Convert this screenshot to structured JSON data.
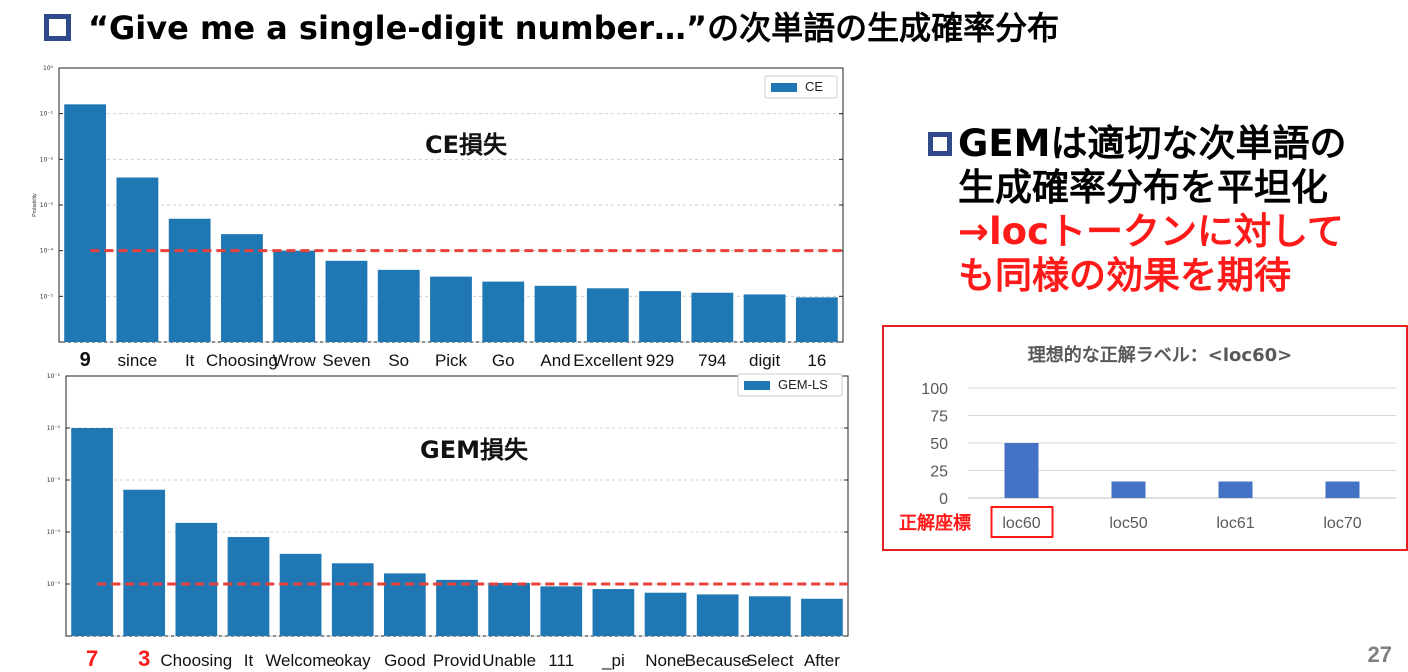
{
  "title": "“Give me a single-digit number…”の次単語の生成確率分布",
  "bullet": {
    "line1": "GEMは適切な次単語の",
    "line2": "生成確率分布を平坦化",
    "line3": "→locトークンに対して",
    "line4": "も同様の効果を期待"
  },
  "page_number": "27",
  "colors": {
    "bar": "#1f77b4",
    "ref_line": "#e8403a",
    "ideal_bar": "#4472c4",
    "accent_red": "#ff1a1a",
    "square": "#2f4a8a"
  },
  "chart_data": [
    {
      "type": "bar",
      "annotation": "CE損失",
      "legend": "CE",
      "legend_position": "top-right",
      "yscale": "log",
      "ylim": [
        1e-06,
        1
      ],
      "grid": true,
      "ytick_labels": [
        "10⁰",
        "10⁻¹",
        "10⁻²",
        "10⁻³",
        "10⁻⁴",
        "10⁻⁵"
      ],
      "ylabel": "Probability",
      "reference_line": 0.0001,
      "categories": [
        "9",
        "since",
        "It",
        "Choosing",
        "Wrow",
        "Seven",
        "So",
        "Pick",
        "Go",
        "And",
        "Excellent",
        "929",
        "794",
        "digit",
        "16"
      ],
      "values": [
        0.16,
        0.004,
        0.0005,
        0.00023,
        0.0001,
        6e-05,
        3.8e-05,
        2.7e-05,
        2.1e-05,
        1.7e-05,
        1.5e-05,
        1.3e-05,
        1.2e-05,
        1.1e-05,
        9.5e-06
      ]
    },
    {
      "type": "bar",
      "annotation": "GEM損失",
      "legend": "GEM-LS",
      "legend_position": "top-right",
      "yscale": "log",
      "ylim": [
        1e-05,
        1
      ],
      "grid": true,
      "ytick_labels": [
        "10⁻¹",
        "10⁻²",
        "10⁻³",
        "10⁻⁴",
        "10⁻⁵"
      ],
      "reference_line": 0.0001,
      "categories": [
        "7",
        "3",
        "Choosing",
        "It",
        "Welcome",
        "okay",
        "Good",
        "Provid",
        "Unable",
        "111",
        "_pi",
        "None",
        "Because",
        "Select",
        "After"
      ],
      "values": [
        0.1,
        0.0065,
        0.0015,
        0.0008,
        0.00038,
        0.00025,
        0.00016,
        0.00012,
        0.000105,
        9e-05,
        8e-05,
        6.8e-05,
        6.3e-05,
        5.8e-05,
        5.2e-05
      ]
    },
    {
      "type": "bar",
      "title": "理想的な正解ラベル：<loc60>",
      "side_label": "正解座標",
      "ylim": [
        0,
        100
      ],
      "yticks": [
        0,
        25,
        50,
        75,
        100
      ],
      "grid": true,
      "categories": [
        "loc60",
        "loc50",
        "loc61",
        "loc70"
      ],
      "values": [
        50,
        15,
        15,
        15
      ]
    }
  ]
}
